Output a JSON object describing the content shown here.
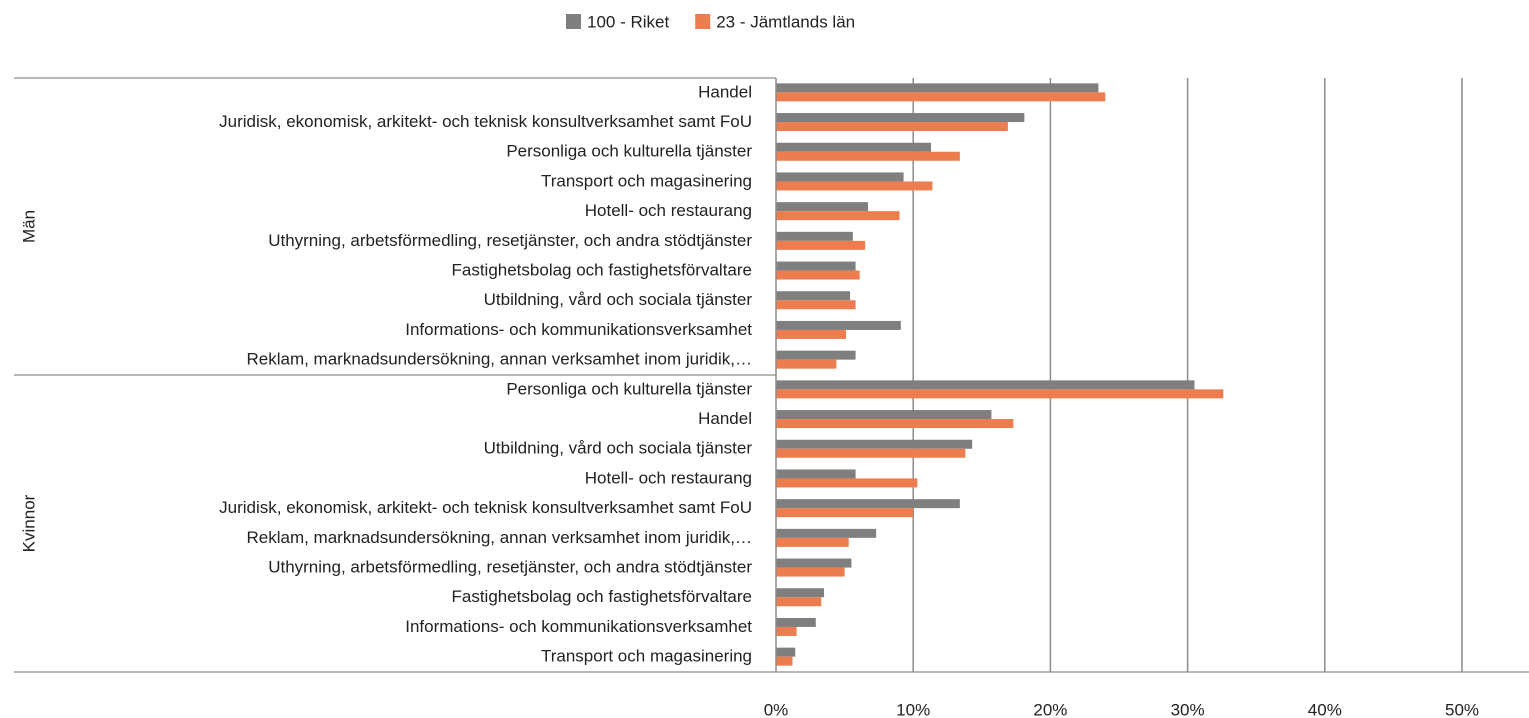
{
  "chart_data": {
    "type": "bar",
    "orientation": "horizontal",
    "group_labels": [
      "Män",
      "Kvinnor"
    ],
    "categories": [
      "Handel",
      "Juridisk, ekonomisk, arkitekt- och teknisk konsultverksamhet samt FoU",
      "Personliga och kulturella tjänster",
      "Transport och magasinering",
      "Hotell- och restaurang",
      "Uthyrning, arbetsförmedling, resetjänster, och andra stödtjänster",
      "Fastighetsbolag och fastighetsförvaltare",
      "Utbildning, vård och sociala tjänster",
      "Informations- och kommunikationsverksamhet",
      "Reklam, marknadsundersökning, annan verksamhet inom juridik,…",
      "Personliga och kulturella tjänster",
      "Handel",
      "Utbildning, vård och sociala tjänster",
      "Hotell- och restaurang",
      "Juridisk, ekonomisk, arkitekt- och teknisk konsultverksamhet samt FoU",
      "Reklam, marknadsundersökning, annan verksamhet inom juridik,…",
      "Uthyrning, arbetsförmedling, resetjänster, och andra stödtjänster",
      "Fastighetsbolag och fastighetsförvaltare",
      "Informations- och kommunikationsverksamhet",
      "Transport och magasinering"
    ],
    "series": [
      {
        "name": "100 - Riket",
        "color": "#7f7f7f",
        "values": [
          23.5,
          18.1,
          11.3,
          9.3,
          6.7,
          5.6,
          5.8,
          5.4,
          9.1,
          5.8,
          30.5,
          15.7,
          14.3,
          5.8,
          13.4,
          7.3,
          5.5,
          3.5,
          2.9,
          1.4
        ]
      },
      {
        "name": "23 - Jämtlands län",
        "color": "#ed7d4f",
        "values": [
          24.0,
          16.9,
          13.4,
          11.4,
          9.0,
          6.5,
          6.1,
          5.8,
          5.1,
          4.4,
          32.6,
          17.3,
          13.8,
          10.3,
          10.0,
          5.3,
          5.0,
          3.3,
          1.5,
          1.2
        ]
      }
    ],
    "xlim": [
      0,
      50
    ],
    "xticks": [
      {
        "value": 0,
        "label": "0%"
      },
      {
        "value": 10,
        "label": "10%"
      },
      {
        "value": 20,
        "label": "20%"
      },
      {
        "value": 30,
        "label": "30%"
      },
      {
        "value": 40,
        "label": "40%"
      },
      {
        "value": 50,
        "label": "50%"
      }
    ],
    "grid": true,
    "legend": "top"
  }
}
